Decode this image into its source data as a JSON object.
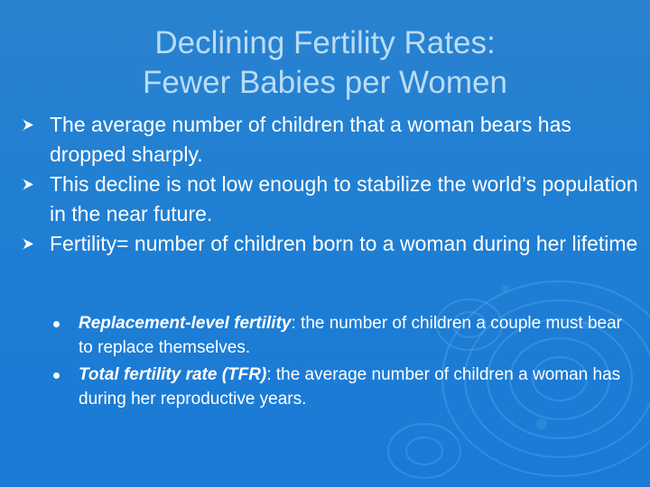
{
  "slide": {
    "title_line1": "Declining Fertility Rates:",
    "title_line2": "Fewer Babies per Women",
    "bullets": [
      {
        "text": "The average number of children that a woman bears has dropped sharply."
      },
      {
        "text": "This decline is not low enough to stabilize the world’s population in the near future."
      },
      {
        "text": "Fertility= number of children born to a woman during her lifetime"
      }
    ],
    "subbullets": [
      {
        "term": "Replacement-level fertility",
        "text": ": the number of children a couple must bear to replace themselves."
      },
      {
        "term": "Total fertility rate (TFR)",
        "text": ": the average number of children a woman has during her reproductive years."
      }
    ]
  },
  "icons": {
    "bullet": "arrow-bullet-icon",
    "subbullet": "dot-bullet-icon"
  },
  "colors": {
    "background": "#1f7fd3",
    "title": "#b9dcf6",
    "text": "#ffffff"
  }
}
